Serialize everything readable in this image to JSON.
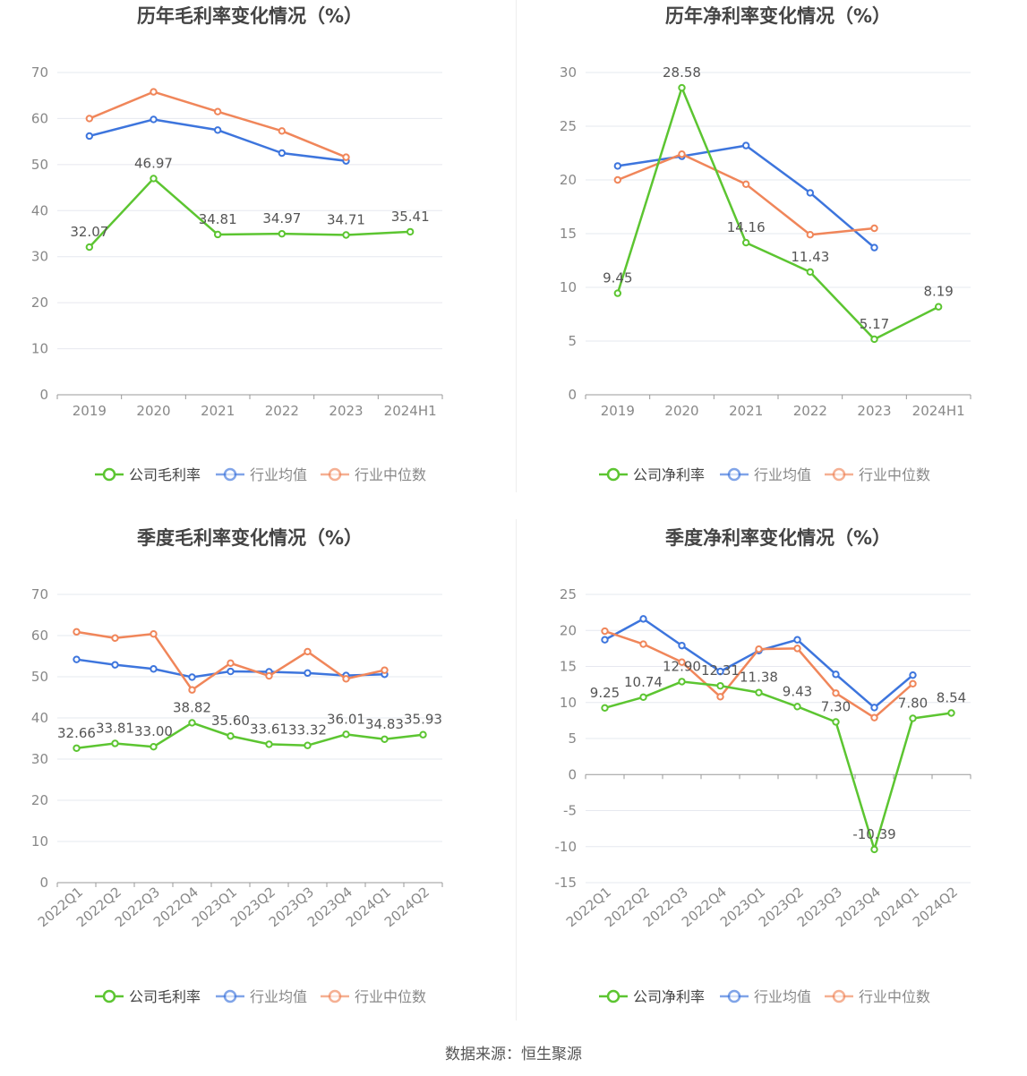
{
  "colors": {
    "company": "#5cc531",
    "industry_avg": "#3d75dd",
    "industry_median": "#f0865a",
    "axis": "#888888",
    "grid": "#e6e8ef",
    "title": "#444444"
  },
  "source": "数据来源：恒生聚源",
  "chart_data": [
    {
      "type": "line",
      "title": "历年毛利率变化情况（%）",
      "categories": [
        "2019",
        "2020",
        "2021",
        "2022",
        "2023",
        "2024H1"
      ],
      "ylim": [
        0,
        70
      ],
      "yticks": [
        0,
        10,
        20,
        30,
        40,
        50,
        60,
        70
      ],
      "grid": true,
      "legend_position": "bottom",
      "rotate_x_labels": false,
      "series": [
        {
          "name": "公司毛利率",
          "values": [
            32.07,
            46.97,
            34.81,
            34.97,
            34.71,
            35.41
          ],
          "labels": [
            "32.07",
            "46.97",
            "34.81",
            "34.97",
            "34.71",
            "35.41"
          ],
          "color": "#5cc531"
        },
        {
          "name": "行业均值",
          "values": [
            56.2,
            59.8,
            57.5,
            52.5,
            50.8,
            null
          ],
          "color": "#3d75dd"
        },
        {
          "name": "行业中位数",
          "values": [
            60.0,
            65.8,
            61.5,
            57.3,
            51.6,
            null
          ],
          "color": "#f0865a"
        }
      ]
    },
    {
      "type": "line",
      "title": "历年净利率变化情况（%）",
      "categories": [
        "2019",
        "2020",
        "2021",
        "2022",
        "2023",
        "2024H1"
      ],
      "ylim": [
        0,
        30
      ],
      "yticks": [
        0,
        5,
        10,
        15,
        20,
        25,
        30
      ],
      "grid": true,
      "legend_position": "bottom",
      "rotate_x_labels": false,
      "series": [
        {
          "name": "公司净利率",
          "values": [
            9.45,
            28.58,
            14.16,
            11.43,
            5.17,
            8.19
          ],
          "labels": [
            "9.45",
            "28.58",
            "14.16",
            "11.43",
            "5.17",
            "8.19"
          ],
          "color": "#5cc531"
        },
        {
          "name": "行业均值",
          "values": [
            21.3,
            22.2,
            23.2,
            18.8,
            13.7,
            null
          ],
          "color": "#3d75dd"
        },
        {
          "name": "行业中位数",
          "values": [
            20.0,
            22.4,
            19.6,
            14.9,
            15.5,
            null
          ],
          "color": "#f0865a"
        }
      ]
    },
    {
      "type": "line",
      "title": "季度毛利率变化情况（%）",
      "categories": [
        "2022Q1",
        "2022Q2",
        "2022Q3",
        "2022Q4",
        "2023Q1",
        "2023Q2",
        "2023Q3",
        "2023Q4",
        "2024Q1",
        "2024Q2"
      ],
      "ylim": [
        0,
        70
      ],
      "yticks": [
        0,
        10,
        20,
        30,
        40,
        50,
        60,
        70
      ],
      "grid": true,
      "legend_position": "bottom",
      "rotate_x_labels": true,
      "series": [
        {
          "name": "公司毛利率",
          "values": [
            32.66,
            33.81,
            33.0,
            38.82,
            35.6,
            33.61,
            33.32,
            36.01,
            34.83,
            35.93
          ],
          "labels": [
            "32.66",
            "33.81",
            "33.00",
            "38.82",
            "35.60",
            "33.61",
            "33.32",
            "36.01",
            "34.83",
            "35.93"
          ],
          "color": "#5cc531"
        },
        {
          "name": "行业均值",
          "values": [
            54.2,
            52.9,
            51.9,
            49.9,
            51.3,
            51.2,
            50.9,
            50.3,
            50.6,
            null
          ],
          "color": "#3d75dd"
        },
        {
          "name": "行业中位数",
          "values": [
            60.9,
            59.4,
            60.4,
            46.8,
            53.3,
            50.2,
            56.1,
            49.5,
            51.6,
            null
          ],
          "color": "#f0865a"
        }
      ]
    },
    {
      "type": "line",
      "title": "季度净利率变化情况（%）",
      "categories": [
        "2022Q1",
        "2022Q2",
        "2022Q3",
        "2022Q4",
        "2023Q1",
        "2023Q2",
        "2023Q3",
        "2023Q4",
        "2024Q1",
        "2024Q2"
      ],
      "ylim": [
        -15,
        25
      ],
      "yticks": [
        -15,
        -10,
        -5,
        0,
        5,
        10,
        15,
        20,
        25
      ],
      "grid": true,
      "legend_position": "bottom",
      "rotate_x_labels": true,
      "series": [
        {
          "name": "公司净利率",
          "values": [
            9.25,
            10.74,
            12.9,
            12.31,
            11.38,
            9.43,
            7.3,
            -10.39,
            7.8,
            8.54
          ],
          "labels": [
            "9.25",
            "10.74",
            "12.90",
            "12.31",
            "11.38",
            "9.43",
            "7.30",
            "-10.39",
            "7.80",
            "8.54"
          ],
          "color": "#5cc531"
        },
        {
          "name": "行业均值",
          "values": [
            18.7,
            21.6,
            17.9,
            14.3,
            17.2,
            18.7,
            13.9,
            9.3,
            13.8,
            null
          ],
          "color": "#3d75dd"
        },
        {
          "name": "行业中位数",
          "values": [
            19.9,
            18.1,
            15.6,
            10.8,
            17.4,
            17.5,
            11.3,
            7.9,
            12.6,
            null
          ],
          "color": "#f0865a"
        }
      ]
    }
  ]
}
